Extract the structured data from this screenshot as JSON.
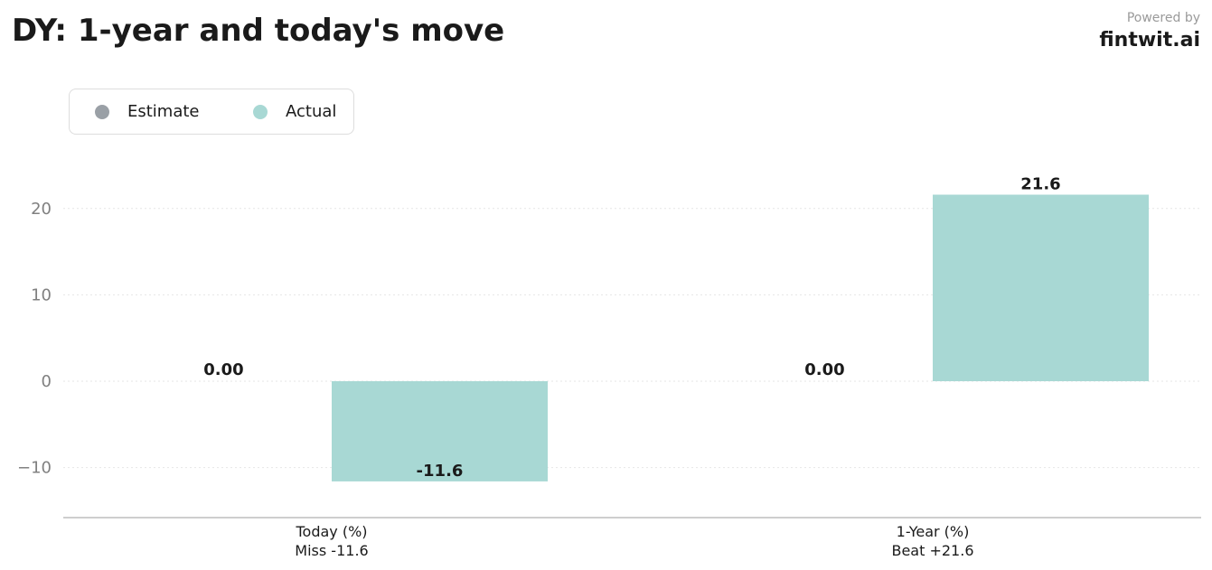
{
  "header": {
    "title": "DY: 1-year and today's move",
    "powered_by": "Powered by",
    "brand": "fintwit.ai"
  },
  "chart_data": {
    "type": "bar",
    "categories": [
      "Today (%)",
      "1-Year (%)"
    ],
    "category_sublabels": [
      "Miss -11.6",
      "Beat +21.6"
    ],
    "series": [
      {
        "name": "Estimate",
        "values": [
          0.0,
          0.0
        ],
        "labels": [
          "0.00",
          "0.00"
        ],
        "color": "#9aa0a6"
      },
      {
        "name": "Actual",
        "values": [
          -11.6,
          21.6
        ],
        "labels": [
          "-11.6",
          "21.6"
        ],
        "color": "#a8d8d4"
      }
    ],
    "yticks": [
      -10,
      0,
      10,
      20
    ],
    "ytick_labels": [
      "−10",
      "0",
      "10",
      "20"
    ],
    "ylim": [
      -15.8,
      26
    ],
    "grid": true,
    "legend_position": "top-left"
  }
}
